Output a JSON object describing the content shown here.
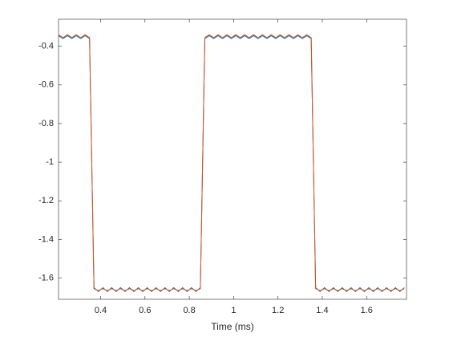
{
  "chart_data": {
    "type": "line",
    "xlabel": "Time (ms)",
    "x": [
      0.21,
      0.23,
      0.25,
      0.27,
      0.29,
      0.31,
      0.33,
      0.35,
      0.37,
      0.39,
      0.41,
      0.43,
      0.45,
      0.47,
      0.49,
      0.51,
      0.53,
      0.55,
      0.57,
      0.59,
      0.61,
      0.63,
      0.65,
      0.67,
      0.69,
      0.71,
      0.73,
      0.75,
      0.77,
      0.79,
      0.81,
      0.83,
      0.85,
      0.87,
      0.89,
      0.91,
      0.93,
      0.95,
      0.97,
      0.99,
      1.01,
      1.03,
      1.05,
      1.07,
      1.09,
      1.11,
      1.13,
      1.15,
      1.17,
      1.19,
      1.21,
      1.23,
      1.25,
      1.27,
      1.29,
      1.31,
      1.33,
      1.35,
      1.37,
      1.39,
      1.41,
      1.43,
      1.45,
      1.47,
      1.49,
      1.51,
      1.53,
      1.55,
      1.57,
      1.59,
      1.61,
      1.63,
      1.65,
      1.67,
      1.69,
      1.71,
      1.73,
      1.75,
      1.77
    ],
    "series": [
      {
        "color": "#0072bd",
        "values": [
          -0.345,
          -0.36,
          -0.345,
          -0.36,
          -0.345,
          -0.36,
          -0.345,
          -0.36,
          -1.65,
          -1.67,
          -1.65,
          -1.67,
          -1.65,
          -1.67,
          -1.65,
          -1.67,
          -1.65,
          -1.67,
          -1.65,
          -1.67,
          -1.65,
          -1.67,
          -1.65,
          -1.67,
          -1.65,
          -1.67,
          -1.65,
          -1.67,
          -1.65,
          -1.67,
          -1.65,
          -1.67,
          -1.65,
          -0.36,
          -0.345,
          -0.36,
          -0.345,
          -0.36,
          -0.345,
          -0.36,
          -0.345,
          -0.36,
          -0.345,
          -0.36,
          -0.345,
          -0.36,
          -0.345,
          -0.36,
          -0.345,
          -0.36,
          -0.345,
          -0.36,
          -0.345,
          -0.36,
          -0.345,
          -0.36,
          -0.345,
          -0.36,
          -1.65,
          -1.67,
          -1.65,
          -1.67,
          -1.65,
          -1.67,
          -1.65,
          -1.67,
          -1.65,
          -1.67,
          -1.65,
          -1.67,
          -1.65,
          -1.67,
          -1.65,
          -1.67,
          -1.65,
          -1.67,
          -1.65,
          -1.67,
          -1.65
        ]
      },
      {
        "color": "#d95319",
        "values": [
          -0.34,
          -0.355,
          -0.34,
          -0.355,
          -0.34,
          -0.355,
          -0.34,
          -0.355,
          -1.655,
          -1.665,
          -1.655,
          -1.665,
          -1.655,
          -1.665,
          -1.655,
          -1.665,
          -1.655,
          -1.665,
          -1.655,
          -1.665,
          -1.655,
          -1.665,
          -1.655,
          -1.665,
          -1.655,
          -1.665,
          -1.655,
          -1.665,
          -1.655,
          -1.665,
          -1.655,
          -1.665,
          -1.655,
          -0.355,
          -0.34,
          -0.355,
          -0.34,
          -0.355,
          -0.34,
          -0.355,
          -0.34,
          -0.355,
          -0.34,
          -0.355,
          -0.34,
          -0.355,
          -0.34,
          -0.355,
          -0.34,
          -0.355,
          -0.34,
          -0.355,
          -0.34,
          -0.355,
          -0.34,
          -0.355,
          -0.34,
          -0.355,
          -1.655,
          -1.665,
          -1.655,
          -1.665,
          -1.655,
          -1.665,
          -1.655,
          -1.665,
          -1.655,
          -1.665,
          -1.655,
          -1.665,
          -1.655,
          -1.665,
          -1.655,
          -1.665,
          -1.655,
          -1.665,
          -1.655,
          -1.665,
          -1.655
        ]
      }
    ],
    "xlim": [
      0.21,
      1.78
    ],
    "xticks": [
      0.4,
      0.6,
      0.8,
      1,
      1.2,
      1.4,
      1.6
    ],
    "ylim": [
      -1.71,
      -0.26
    ],
    "yticks": [
      -1.6,
      -1.4,
      -1.2,
      -1,
      -0.8,
      -0.6,
      -0.4
    ],
    "grid": false
  }
}
